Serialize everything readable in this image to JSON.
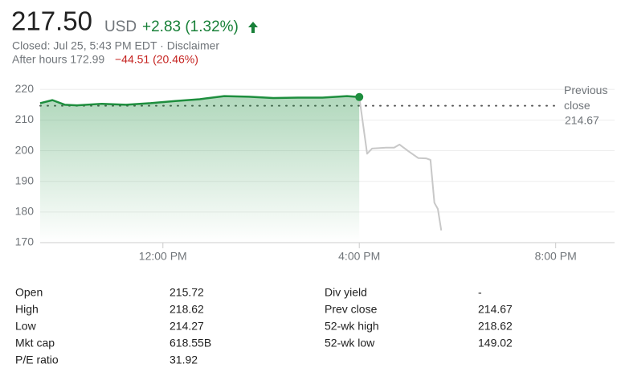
{
  "header": {
    "price": "217.50",
    "currency": "USD",
    "change": "+2.83 (1.32%)",
    "status": "Closed: Jul 25, 5:43 PM EDT · Disclaimer",
    "after_hours": "After hours 172.99",
    "after_hours_change": "−44.51 (20.46%)"
  },
  "chart_data": {
    "type": "line",
    "series": [
      {
        "color": "#1e8e3e",
        "x": [
          9.5,
          9.75,
          10,
          10.25,
          10.75,
          11.25,
          11.75,
          12.25,
          12.75,
          13.25,
          13.75,
          14.25,
          14.75,
          15.25,
          15.75,
          16
        ],
        "values": [
          215.5,
          216.5,
          215.0,
          214.8,
          215.3,
          215.0,
          215.5,
          216.2,
          216.8,
          217.8,
          217.6,
          217.2,
          217.3,
          217.3,
          217.8,
          217.5
        ]
      },
      {
        "color": "#c8c8c8",
        "x": [
          16,
          16.16,
          16.26,
          16.54,
          16.71,
          16.82,
          17.03,
          17.2,
          17.36,
          17.45,
          17.53,
          17.6,
          17.67
        ],
        "values": [
          217.5,
          199,
          200.7,
          201,
          201,
          202,
          199.5,
          197.6,
          197.5,
          197,
          183,
          181,
          174
        ]
      }
    ],
    "previous_close_label": "Previous close",
    "previous_close": 214.67,
    "xlim": [
      9.5,
      21.2
    ],
    "xticks": [
      {
        "value": 12,
        "label": "12:00 PM"
      },
      {
        "value": 16,
        "label": "4:00 PM"
      },
      {
        "value": 20,
        "label": "8:00 PM"
      }
    ],
    "ylim": [
      170,
      224
    ],
    "yticks": [
      170,
      180,
      190,
      200,
      210,
      220
    ],
    "grid": true
  },
  "stats": {
    "rows": [
      [
        "Open",
        "215.72",
        "Div yield",
        "-"
      ],
      [
        "High",
        "218.62",
        "Prev close",
        "214.67"
      ],
      [
        "Low",
        "214.27",
        "52-wk high",
        "218.62"
      ],
      [
        "Mkt cap",
        "618.55B",
        "52-wk low",
        "149.02"
      ],
      [
        "P/E ratio",
        "31.92"
      ]
    ]
  }
}
